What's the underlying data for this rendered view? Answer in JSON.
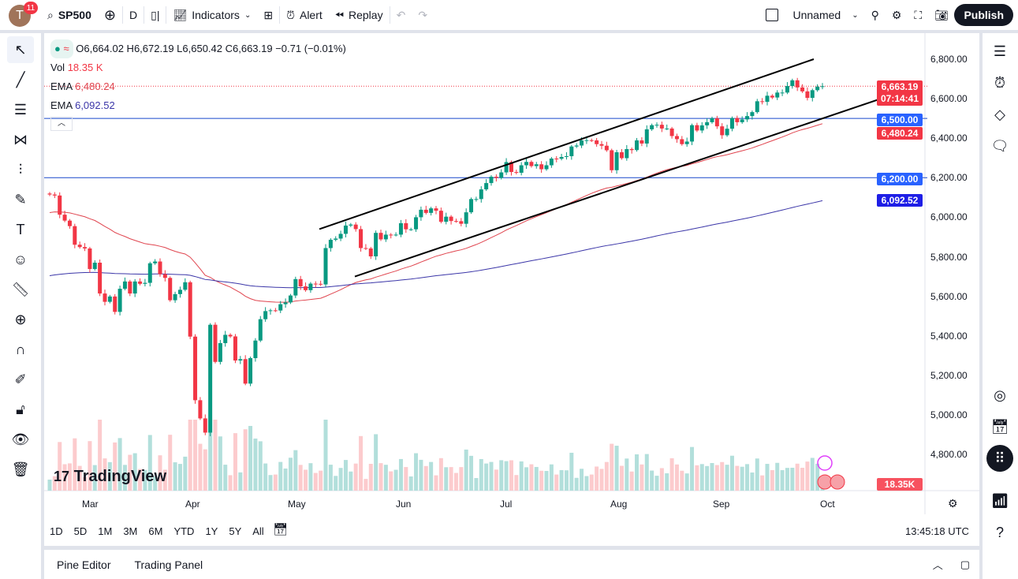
{
  "topbar": {
    "avatar_letter": "T",
    "notif_count": "11",
    "symbol": "SP500",
    "interval": "D",
    "indicators": "Indicators",
    "alert": "Alert",
    "replay": "Replay",
    "layout_name": "Unnamed",
    "publish": "Publish"
  },
  "legend": {
    "ohlc": "O6,664.02 H6,672.19 L6,650.42 C6,663.19 −0.71 (−0.01%)",
    "vol_label": "Vol",
    "vol_value": "18.35 K",
    "ema1_label": "EMA",
    "ema1_value": "6,480.24",
    "ema2_label": "EMA",
    "ema2_value": "6,092.52"
  },
  "price_labels": {
    "last": "6,663.19",
    "countdown": "07:14:41",
    "hline1": "6,500.00",
    "ema1": "6,480.24",
    "hline2": "6,200.00",
    "ema2": "6,092.52",
    "volume": "18.35K"
  },
  "colors": {
    "up": "#089981",
    "down": "#f23645",
    "ema_fast": "#e0454f",
    "ema_slow": "#3b36a8",
    "hline": "#2962ff"
  },
  "time_range": [
    "1D",
    "5D",
    "1M",
    "3M",
    "6M",
    "YTD",
    "1Y",
    "5Y",
    "All"
  ],
  "clock": "13:45:18 UTC",
  "bottom": {
    "pine": "Pine Editor",
    "panel": "Trading Panel"
  },
  "watermark": "TradingView",
  "chart_data": {
    "type": "candlestick",
    "y_ticks": [
      6800,
      6600,
      6400,
      6200,
      6000,
      5800,
      5600,
      5400,
      5200,
      5000,
      4800
    ],
    "y_tick_labels": [
      "6,800.00",
      "6,600.00",
      "6,400.00",
      "6,200.00",
      "6,000.00",
      "5,800.00",
      "5,600.00",
      "5,400.00",
      "5,200.00",
      "5,000.00",
      "4,800.00"
    ],
    "x_ticks": [
      "Mar",
      "Apr",
      "May",
      "Jun",
      "Jul",
      "Aug",
      "Sep",
      "Oct"
    ],
    "horizontal_lines": [
      6500,
      6200
    ],
    "last_price": 6663.19,
    "trendlines": [
      {
        "from": 5940,
        "to": 6800
      },
      {
        "from": 5700,
        "to": 6620
      }
    ],
    "closes": [
      6115,
      6110,
      6013,
      5983,
      5955,
      5861,
      5849,
      5842,
      5738,
      5770,
      5614,
      5572,
      5599,
      5521,
      5638,
      5675,
      5614,
      5675,
      5663,
      5668,
      5767,
      5776,
      5712,
      5693,
      5580,
      5611,
      5633,
      5671,
      5396,
      5074,
      4982,
      4910,
      5456,
      5268,
      5363,
      5405,
      5397,
      5275,
      5282,
      5158,
      5287,
      5376,
      5484,
      5525,
      5529,
      5528,
      5560,
      5569,
      5604,
      5687,
      5650,
      5631,
      5664,
      5663,
      5660,
      5844,
      5886,
      5892,
      5916,
      5958,
      5963,
      5940,
      5844,
      5842,
      5802,
      5921,
      5888,
      5912,
      5911,
      5912,
      5970,
      5939,
      5939,
      6000,
      6038,
      6022,
      6045,
      6033,
      5977,
      6003,
      5981,
      5980,
      5967,
      6025,
      6092,
      6092,
      6141,
      6173,
      6205,
      6199,
      6227,
      6279,
      6229,
      6225,
      6263,
      6280,
      6259,
      6268,
      6243,
      6263,
      6297,
      6296,
      6305,
      6309,
      6358,
      6363,
      6389,
      6390,
      6389,
      6370,
      6362,
      6339,
      6238,
      6329,
      6299,
      6345,
      6340,
      6389,
      6373,
      6445,
      6466,
      6468,
      6449,
      6449,
      6411,
      6395,
      6370,
      6383,
      6466,
      6439,
      6465,
      6481,
      6501,
      6460,
      6415,
      6448,
      6502,
      6481,
      6495,
      6512,
      6532,
      6587,
      6584,
      6615,
      6606,
      6631,
      6631,
      6664,
      6693,
      6657,
      6637,
      6604,
      6643,
      6661,
      6663
    ]
  }
}
